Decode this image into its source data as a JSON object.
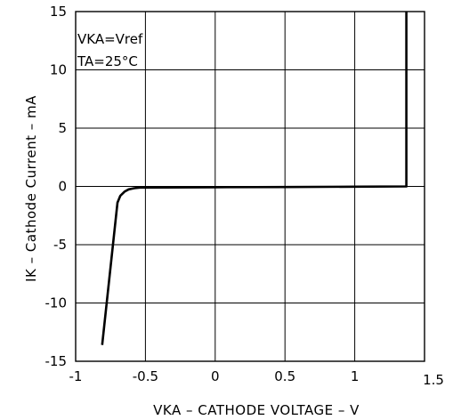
{
  "chart_data": {
    "type": "line",
    "title": "",
    "xlabel": "VKA  –  CATHODE  VOLTAGE  –  V",
    "ylabel": "IK  –  Cathode  Current  –  mA",
    "xlim": [
      -1,
      1.5
    ],
    "ylim": [
      -15,
      15
    ],
    "x_ticks": [
      -1,
      -0.5,
      0,
      0.5,
      1,
      1.5
    ],
    "x_tick_labels": [
      "-1",
      "-0.5",
      "0",
      "0.5",
      "1",
      "1.5"
    ],
    "y_ticks": [
      15,
      10,
      5,
      0,
      -5,
      -10,
      -15
    ],
    "y_tick_labels": [
      "15",
      "10",
      "5",
      "0",
      "-5",
      "-10",
      "-15"
    ],
    "grid": true,
    "annotations": [
      "VKA=Vref",
      "TA=25°C"
    ],
    "series": [
      {
        "x": [
          -0.81,
          -0.7,
          -0.68,
          -0.65,
          -0.62,
          -0.58,
          -0.54,
          0.0,
          0.5,
          1.0,
          1.37,
          1.37
        ],
        "y": [
          -13.6,
          -1.4,
          -0.8,
          -0.45,
          -0.25,
          -0.15,
          -0.1,
          -0.07,
          -0.05,
          -0.02,
          0.0,
          15.0
        ]
      }
    ]
  }
}
